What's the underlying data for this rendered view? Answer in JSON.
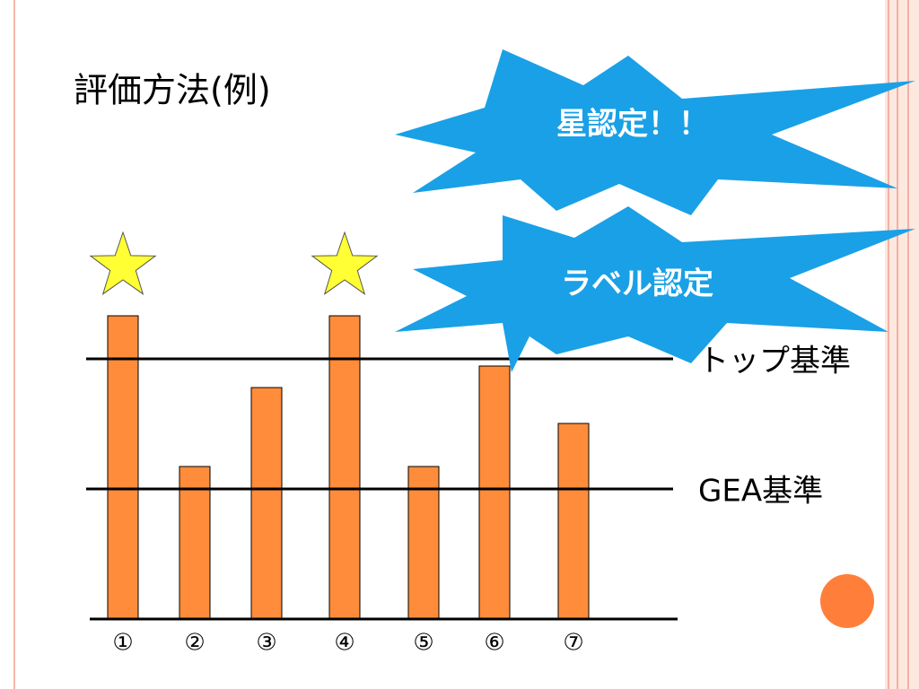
{
  "chart_data": {
    "type": "bar",
    "title": "評価方法(例)",
    "categories": [
      "①",
      "②",
      "③",
      "④",
      "⑤",
      "⑥",
      "⑦"
    ],
    "values": [
      338,
      170,
      258,
      338,
      170,
      282,
      218
    ],
    "color": "#ff8c3a",
    "ylim": [
      0,
      340
    ],
    "stars": [
      true,
      false,
      false,
      true,
      false,
      false,
      false
    ],
    "reference_lines": [
      {
        "label": "トップ基準",
        "value": 290
      },
      {
        "label": "GEA基準",
        "value": 145
      }
    ],
    "callouts": [
      "星認定！！",
      "ラベル認定"
    ]
  }
}
